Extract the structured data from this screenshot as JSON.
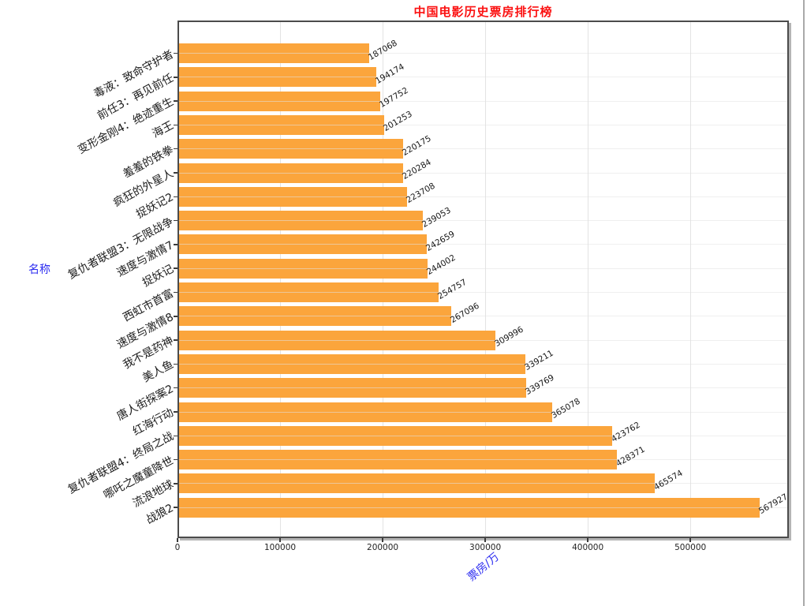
{
  "title": {
    "text": "中国电影历史票房排行榜",
    "color": "#fb1111"
  },
  "axes": {
    "y_name": "名称",
    "x_name": "票房/万",
    "axis_name_color": "#2b2bf0",
    "x_tick_labels": [
      "0",
      "100000",
      "200000",
      "300000",
      "400000",
      "500000"
    ],
    "x_tick_values": [
      0,
      100000,
      200000,
      300000,
      400000,
      500000
    ]
  },
  "chart_data": {
    "type": "bar",
    "orientation": "horizontal",
    "title": "中国电影历史票房排行榜",
    "xlabel": "票房/万",
    "ylabel": "名称",
    "grid": true,
    "bar_color": "#FBA53C",
    "value_labels_shown": true,
    "xlim": [
      0,
      596000
    ],
    "categories": [
      "毒液：致命守护者",
      "前任3：再见前任",
      "变形金刚4：绝迹重生",
      "海王",
      "羞羞的铁拳",
      "疯狂的外星人",
      "捉妖记2",
      "复仇者联盟3：无限战争",
      "速度与激情7",
      "捉妖记",
      "西虹市首富",
      "速度与激情8",
      "我不是药神",
      "美人鱼",
      "唐人街探案2",
      "红海行动",
      "复仇者联盟4：终局之战",
      "哪吒之魔童降世",
      "流浪地球",
      "战狼2"
    ],
    "values": [
      187068,
      194174,
      197752,
      201253,
      220175,
      220284,
      223708,
      239053,
      242659,
      244002,
      254757,
      267096,
      309996,
      339211,
      339769,
      365078,
      423762,
      428371,
      465574,
      567927
    ]
  }
}
